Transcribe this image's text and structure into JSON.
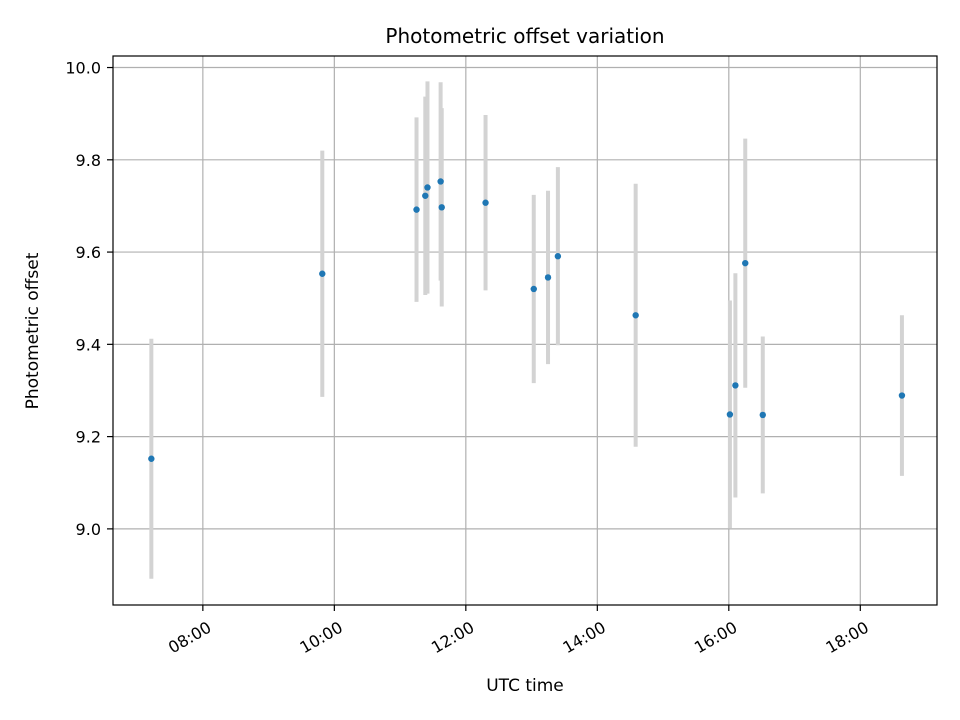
{
  "chart_data": {
    "type": "scatter",
    "title": "Photometric offset variation",
    "xlabel": "UTC time",
    "ylabel": "Photometric offset",
    "x_ticks": [
      "08:00",
      "10:00",
      "12:00",
      "14:00",
      "16:00",
      "18:00"
    ],
    "y_ticks": [
      "9.0",
      "9.2",
      "9.4",
      "9.6",
      "9.8",
      "10.0"
    ],
    "xlim": [
      "06:38",
      "19:10"
    ],
    "ylim": [
      8.835,
      10.025
    ],
    "grid": true,
    "marker_color": "#1f77b4",
    "errorbar_color": "#d3d3d3",
    "points": [
      {
        "x": "07:13",
        "y": 9.152,
        "err": 0.26
      },
      {
        "x": "09:49",
        "y": 9.553,
        "err": 0.267
      },
      {
        "x": "11:15",
        "y": 9.692,
        "err": 0.2
      },
      {
        "x": "11:23",
        "y": 9.722,
        "err": 0.215
      },
      {
        "x": "11:25",
        "y": 9.74,
        "err": 0.23
      },
      {
        "x": "11:37",
        "y": 9.753,
        "err": 0.215
      },
      {
        "x": "11:38",
        "y": 9.697,
        "err": 0.215
      },
      {
        "x": "12:18",
        "y": 9.707,
        "err": 0.19
      },
      {
        "x": "13:02",
        "y": 9.52,
        "err": 0.204
      },
      {
        "x": "13:15",
        "y": 9.545,
        "err": 0.188
      },
      {
        "x": "13:24",
        "y": 9.591,
        "err": 0.193
      },
      {
        "x": "14:35",
        "y": 9.463,
        "err": 0.285
      },
      {
        "x": "16:01",
        "y": 9.248,
        "err": 0.247
      },
      {
        "x": "16:06",
        "y": 9.311,
        "err": 0.243
      },
      {
        "x": "16:15",
        "y": 9.576,
        "err": 0.27
      },
      {
        "x": "16:31",
        "y": 9.247,
        "err": 0.17
      },
      {
        "x": "18:38",
        "y": 9.289,
        "err": 0.174
      }
    ]
  }
}
